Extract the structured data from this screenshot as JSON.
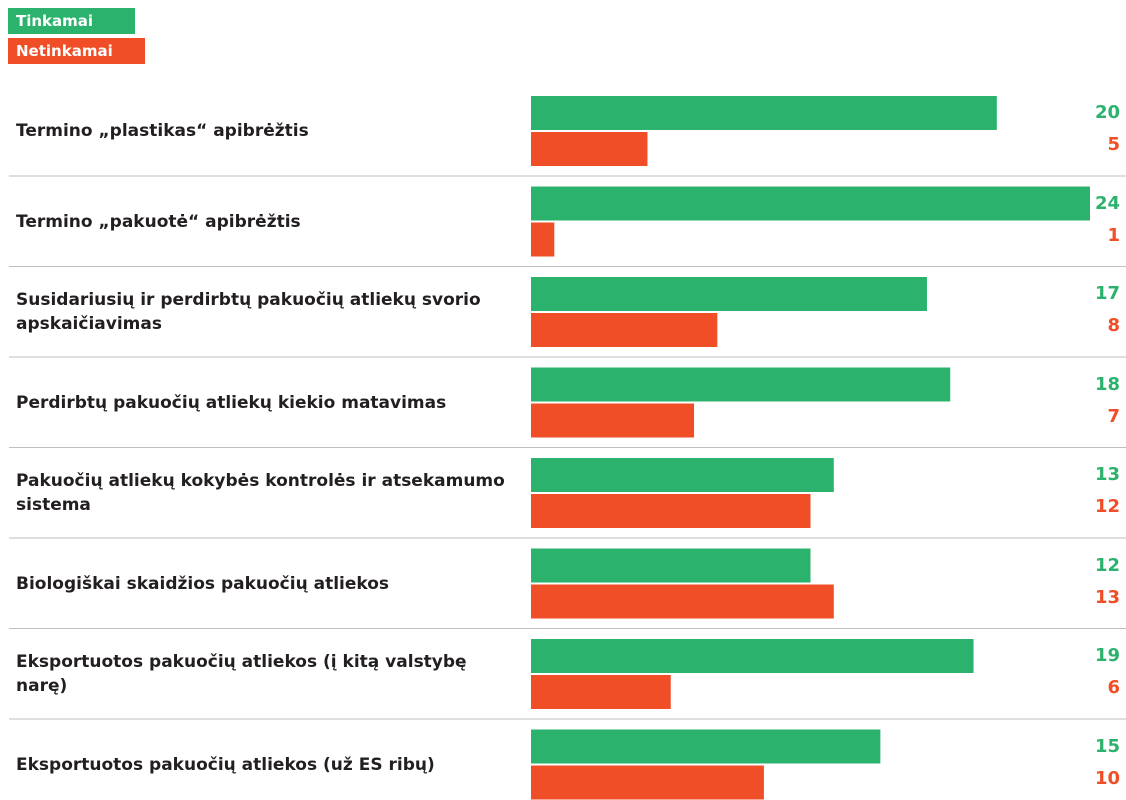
{
  "legend": {
    "ok": "Tinkamai",
    "bad": "Netinkamai"
  },
  "colors": {
    "ok": "#2bb36e",
    "bad": "#ef4e27",
    "text": "#231f20",
    "divider": "#bfbfbf"
  },
  "chart_data": {
    "type": "bar",
    "orientation": "horizontal",
    "categories": [
      "Termino „plastikas“ apibrėžtis",
      "Termino „pakuotė“ apibrėžtis",
      "Susidariusių ir perdirbtų pakuočių atliekų svorio apskaičiavimas",
      "Perdirbtų pakuočių atliekų kiekio matavimas",
      "Pakuočių atliekų kokybės kontrolės ir atsekamumo sistema",
      "Biologiškai skaidžios pakuočių atliekos",
      "Eksportuotos pakuočių atliekos (į kitą valstybę narę)",
      "Eksportuotos pakuočių atliekos (už ES ribų)"
    ],
    "series": [
      {
        "name": "Tinkamai",
        "values": [
          20,
          24,
          17,
          18,
          13,
          12,
          19,
          15
        ]
      },
      {
        "name": "Netinkamai",
        "values": [
          5,
          1,
          8,
          7,
          12,
          13,
          6,
          10
        ]
      }
    ],
    "xlim": [
      0,
      24
    ],
    "grid": false,
    "legend_position": "top-left"
  }
}
